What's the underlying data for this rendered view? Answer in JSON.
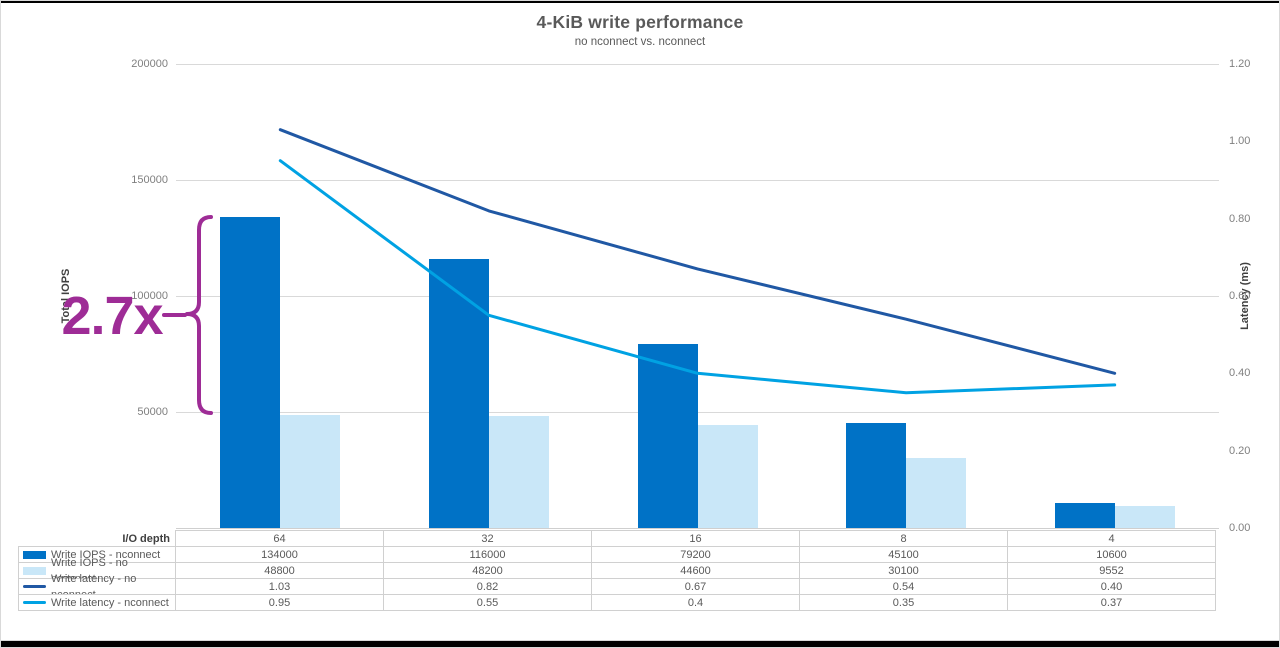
{
  "title": "4-KiB write performance",
  "subtitle": "no nconnect vs. nconnect",
  "annotation": {
    "text": "2.7x",
    "color": "#9E2C96"
  },
  "colors": {
    "bar_nconnect": "#0072C6",
    "bar_no_nconnect": "#C9E7F8",
    "line_no_nconnect": "#2058A4",
    "line_nconnect": "#00A2E3",
    "gridline": "#D9D9D9"
  },
  "left_axis": {
    "title": "Total IOPS",
    "max": 200000,
    "ticks": [
      {
        "label": "200000",
        "value": 200000
      },
      {
        "label": "150000",
        "value": 150000
      },
      {
        "label": "100000",
        "value": 100000
      },
      {
        "label": "50000",
        "value": 50000
      }
    ]
  },
  "right_axis": {
    "title": "Latency (ms)",
    "max": 1.2,
    "ticks": [
      {
        "label": "1.20",
        "value": 1.2
      },
      {
        "label": "1.00",
        "value": 1.0
      },
      {
        "label": "0.80",
        "value": 0.8
      },
      {
        "label": "0.60",
        "value": 0.6
      },
      {
        "label": "0.40",
        "value": 0.4
      },
      {
        "label": "0.20",
        "value": 0.2
      },
      {
        "label": "0.00",
        "value": 0.0
      }
    ]
  },
  "chart_data": {
    "type": "combo bar+line",
    "x_title": "I/O depth",
    "categories": [
      "64",
      "32",
      "16",
      "8",
      "4"
    ],
    "left_ylim": [
      0,
      200000
    ],
    "right_ylim": [
      0,
      1.2
    ],
    "grid": "horizontal gridlines every 50000 IOPS",
    "legend_position": "table below chart",
    "series": [
      {
        "name": "Write IOPS - nconnect",
        "type": "bar",
        "axis": "left",
        "color": "#0072C6",
        "values": [
          134000,
          116000,
          79200,
          45100,
          10600
        ]
      },
      {
        "name": "Write IOPS - no nconnect",
        "type": "bar",
        "axis": "left",
        "color": "#C9E7F8",
        "values": [
          48800,
          48200,
          44600,
          30100,
          9552
        ]
      },
      {
        "name": "Write latency - no nconnect",
        "type": "line",
        "axis": "right",
        "color": "#2058A4",
        "values": [
          1.03,
          0.82,
          0.67,
          0.54,
          0.4
        ]
      },
      {
        "name": "Write latency - nconnect",
        "type": "line",
        "axis": "right",
        "color": "#00A2E3",
        "values": [
          0.95,
          0.55,
          0.4,
          0.35,
          0.37
        ]
      }
    ]
  },
  "table": {
    "header_label": "I/O depth",
    "rows": [
      {
        "label": "Write IOPS - nconnect",
        "swatch": "bar",
        "color": "#0072C6",
        "values": [
          "134000",
          "116000",
          "79200",
          "45100",
          "10600"
        ]
      },
      {
        "label": "Write IOPS - no nconnect",
        "swatch": "bar",
        "color": "#C9E7F8",
        "values": [
          "48800",
          "48200",
          "44600",
          "30100",
          "9552"
        ]
      },
      {
        "label": "Write latency - no nconnect",
        "swatch": "line",
        "color": "#2058A4",
        "values": [
          "1.03",
          "0.82",
          "0.67",
          "0.54",
          "0.40"
        ]
      },
      {
        "label": "Write latency - nconnect",
        "swatch": "line",
        "color": "#00A2E3",
        "values": [
          "0.95",
          "0.55",
          "0.4",
          "0.35",
          "0.37"
        ]
      }
    ]
  }
}
